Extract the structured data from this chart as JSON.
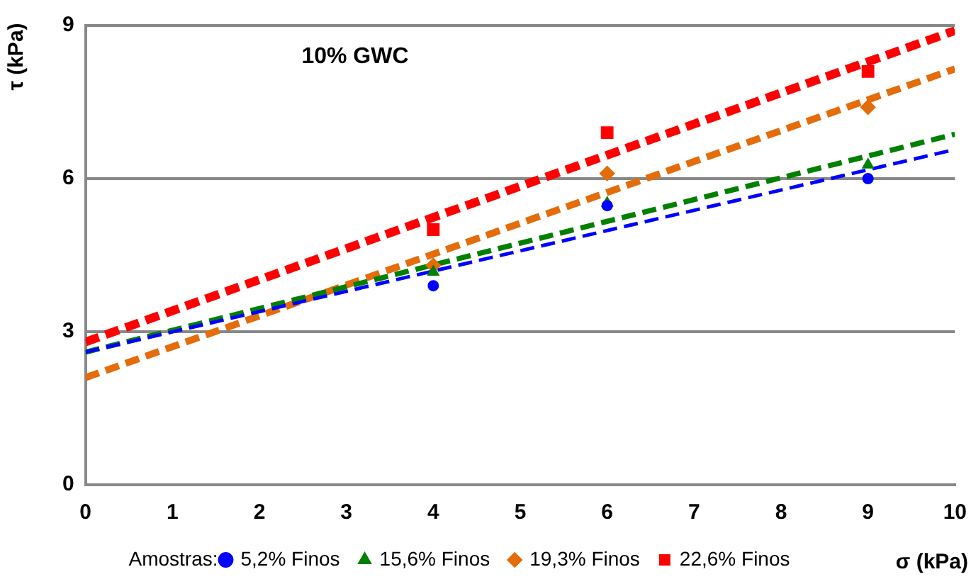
{
  "chart_data": {
    "type": "scatter",
    "title": "10% GWC",
    "xlabel": "σ (kPa)",
    "ylabel": "τ (kPa)",
    "legend_title": "Amostras:",
    "xlim": [
      0,
      10
    ],
    "xticks": [
      0,
      1,
      2,
      3,
      4,
      5,
      6,
      7,
      8,
      9,
      10
    ],
    "ylim": [
      0,
      9
    ],
    "yticks": [
      0,
      3,
      6,
      9
    ],
    "grid": "y",
    "legend": "bottom",
    "series": [
      {
        "name": "5,2% Finos",
        "color": "#0000ff",
        "marker": "circle",
        "x": [
          4,
          6,
          9
        ],
        "values": [
          3.9,
          5.47,
          6.0
        ]
      },
      {
        "name": "15,6% Finos",
        "color": "#008000",
        "marker": "triangle",
        "x": [
          4,
          6,
          9
        ],
        "values": [
          4.17,
          5.52,
          6.27
        ]
      },
      {
        "name": "19,3% Finos",
        "color": "#e46c0a",
        "marker": "diamond",
        "x": [
          4,
          6,
          9
        ],
        "values": [
          4.3,
          6.1,
          7.4
        ]
      },
      {
        "name": "22,6% Finos",
        "color": "#ff0000",
        "marker": "square",
        "x": [
          4,
          6,
          9
        ],
        "values": [
          5.0,
          6.9,
          8.1
        ]
      },
      {
        "type": "line",
        "color": "#0000ff",
        "line_style": "dashed",
        "marker": "none",
        "x": [
          0,
          10
        ],
        "values": [
          2.6,
          6.57
        ]
      },
      {
        "type": "line",
        "color": "#008000",
        "line_style": "dashed",
        "marker": "none",
        "x": [
          0,
          10
        ],
        "values": [
          2.6,
          6.87
        ]
      },
      {
        "type": "line",
        "color": "#e46c0a",
        "line_style": "dashed",
        "marker": "none",
        "x": [
          0,
          10
        ],
        "values": [
          2.1,
          8.15
        ]
      },
      {
        "type": "line",
        "color": "#ff0000",
        "line_style": "dashed",
        "marker": "none",
        "x": [
          0,
          10
        ],
        "values": [
          2.8,
          8.9
        ]
      }
    ]
  }
}
